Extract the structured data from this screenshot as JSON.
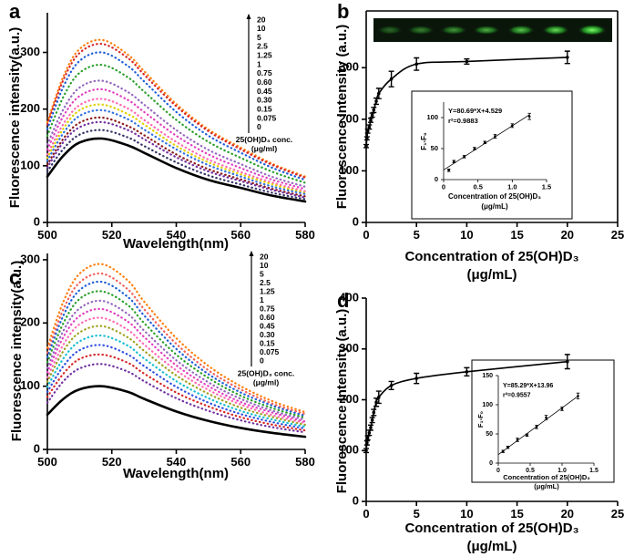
{
  "chart_data": [
    {
      "type": "line",
      "label": "a",
      "xlabel": "Wavelength(nm)",
      "ylabel": "Fluorescence intensity(a.u.)",
      "xlim": [
        500,
        580
      ],
      "ylim": [
        0,
        370
      ],
      "xticks": [
        500,
        520,
        540,
        560,
        580
      ],
      "yticks": [
        0,
        100,
        200,
        300
      ],
      "frame": "axes",
      "legend_title": [
        "25(OH)D₃ conc.",
        "(μg/ml)"
      ],
      "x": [
        500,
        505,
        510,
        517,
        525,
        530,
        540,
        550,
        560,
        570,
        580
      ],
      "series": [
        {
          "name": "20",
          "color": "#ff7f0e",
          "style": "dotted",
          "values": [
            177,
            258,
            306,
            322,
            296,
            267,
            209,
            164,
            132,
            103,
            81
          ]
        },
        {
          "name": "10",
          "color": "#d62728",
          "style": "dotted",
          "values": [
            173,
            252,
            299,
            315,
            290,
            261,
            205,
            161,
            129,
            101,
            79
          ]
        },
        {
          "name": "5",
          "color": "#1f5fd6",
          "style": "dotted",
          "values": [
            165,
            240,
            285,
            300,
            276,
            249,
            195,
            153,
            123,
            96,
            75
          ]
        },
        {
          "name": "2.5",
          "color": "#2ca02c",
          "style": "dotted",
          "values": [
            153,
            222,
            264,
            278,
            256,
            231,
            181,
            142,
            114,
            89,
            70
          ]
        },
        {
          "name": "1.25",
          "color": "#9467bd",
          "style": "dotted",
          "values": [
            138,
            200,
            238,
            250,
            230,
            208,
            163,
            128,
            103,
            80,
            63
          ]
        },
        {
          "name": "1",
          "color": "#e040c0",
          "style": "dotted",
          "values": [
            129,
            188,
            223,
            235,
            216,
            195,
            153,
            120,
            96,
            75,
            59
          ]
        },
        {
          "name": "0.75",
          "color": "#ff69b4",
          "style": "dotted",
          "values": [
            120,
            174,
            207,
            218,
            201,
            181,
            142,
            111,
            89,
            70,
            55
          ]
        },
        {
          "name": "0.60",
          "color": "#e0d000",
          "style": "dotted",
          "values": [
            114,
            166,
            198,
            208,
            191,
            173,
            135,
            106,
            85,
            67,
            52
          ]
        },
        {
          "name": "0.45",
          "color": "#3070e0",
          "style": "dotted",
          "values": [
            109,
            158,
            188,
            198,
            182,
            164,
            129,
            101,
            81,
            63,
            50
          ]
        },
        {
          "name": "0.30",
          "color": "#8b1a1a",
          "style": "dotted",
          "values": [
            102,
            148,
            176,
            185,
            170,
            154,
            120,
            94,
            76,
            59,
            46
          ]
        },
        {
          "name": "0.15",
          "color": "#7030a0",
          "style": "dotted",
          "values": [
            97,
            142,
            168,
            177,
            163,
            147,
            115,
            90,
            73,
            57,
            44
          ]
        },
        {
          "name": "0.075",
          "color": "#333366",
          "style": "dotted",
          "values": [
            90,
            130,
            155,
            163,
            150,
            135,
            106,
            83,
            67,
            52,
            41
          ]
        },
        {
          "name": "0",
          "color": "#000000",
          "style": "solid",
          "values": [
            81,
            118,
            141,
            148,
            136,
            123,
            96,
            75,
            61,
            47,
            37
          ]
        }
      ]
    },
    {
      "type": "scatter",
      "label": "b",
      "xlabel": [
        "Concentration of 25(OH)D₃",
        "(μg/mL)"
      ],
      "ylabel": "Fluorescence Intensity (a.u.)",
      "xlim": [
        0,
        25
      ],
      "ylim": [
        0,
        410
      ],
      "xticks": [
        0,
        5,
        10,
        15,
        20,
        25
      ],
      "yticks": [
        0,
        100,
        200,
        300
      ],
      "frame": "box",
      "curve": "smooth",
      "color": "#000000",
      "x": [
        0,
        0.075,
        0.15,
        0.3,
        0.45,
        0.6,
        0.75,
        1,
        1.25,
        2.5,
        5,
        10,
        20
      ],
      "values": [
        148,
        163,
        177,
        185,
        198,
        208,
        218,
        235,
        250,
        278,
        307,
        312,
        320
      ],
      "errors": [
        3,
        3,
        4,
        4,
        4,
        4,
        5,
        6,
        10,
        15,
        12,
        5,
        12
      ]
    },
    {
      "type": "scatter",
      "xlabel": [
        "Concentration of 25(OH)D₃",
        "(μg/mL)"
      ],
      "ylabel": "F₁-F₀",
      "xlim": [
        0,
        1.5
      ],
      "ylim": [
        0,
        125
      ],
      "xticks": [
        0,
        0.5,
        {
          "value": 1,
          "label": "1.0"
        },
        1.5
      ],
      "yticks": [
        0,
        50,
        100
      ],
      "frame": "axes",
      "curve": "linear-fit",
      "color": "#000000",
      "annotations": [
        "Y=80.69*X+4.529",
        "r²=0.9883"
      ],
      "x": [
        0.075,
        0.15,
        0.3,
        0.45,
        0.6,
        0.75,
        1,
        1.25
      ],
      "values": [
        15,
        29,
        37,
        50,
        60,
        70,
        87,
        102
      ],
      "errors": [
        2,
        2,
        2,
        2,
        2,
        3,
        3,
        5
      ]
    },
    {
      "type": "line",
      "label": "c",
      "xlabel": "Wavelength(nm)",
      "ylabel": "Fluorescence intensity(a.u.)",
      "xlim": [
        500,
        580
      ],
      "ylim": [
        0,
        310
      ],
      "xticks": [
        500,
        520,
        540,
        560,
        580
      ],
      "yticks": [
        0,
        100,
        200,
        300
      ],
      "frame": "axes",
      "legend_title": [
        "25(OH)D₃ conc.",
        "(μg/ml)"
      ],
      "x": [
        500,
        505,
        510,
        517,
        525,
        530,
        540,
        550,
        560,
        570,
        580
      ],
      "series": [
        {
          "name": "20",
          "color": "#ff7f0e",
          "style": "dotted",
          "values": [
            161,
            234,
            278,
            293,
            267,
            234,
            176,
            132,
            100,
            76,
            59
          ]
        },
        {
          "name": "10",
          "color": "#f0605a",
          "style": "dotted",
          "values": [
            153,
            222,
            264,
            278,
            253,
            222,
            167,
            125,
            95,
            72,
            56
          ]
        },
        {
          "name": "5",
          "color": "#1f5fd6",
          "style": "dotted",
          "values": [
            146,
            212,
            252,
            265,
            241,
            212,
            159,
            119,
            90,
            69,
            53
          ]
        },
        {
          "name": "2.5",
          "color": "#2ca02c",
          "style": "dotted",
          "values": [
            138,
            200,
            238,
            250,
            228,
            200,
            150,
            113,
            85,
            65,
            50
          ]
        },
        {
          "name": "1.25",
          "color": "#9467bd",
          "style": "dotted",
          "values": [
            129,
            188,
            223,
            235,
            214,
            188,
            141,
            106,
            80,
            61,
            47
          ]
        },
        {
          "name": "1",
          "color": "#e040c0",
          "style": "dotted",
          "values": [
            122,
            178,
            211,
            222,
            202,
            178,
            133,
            100,
            75,
            58,
            44
          ]
        },
        {
          "name": "0.75",
          "color": "#ff69b4",
          "style": "dotted",
          "values": [
            114,
            166,
            198,
            208,
            189,
            166,
            125,
            94,
            71,
            54,
            42
          ]
        },
        {
          "name": "0.60",
          "color": "#a0a020",
          "style": "dotted",
          "values": [
            107,
            156,
            185,
            195,
            177,
            156,
            117,
            88,
            66,
            51,
            39
          ]
        },
        {
          "name": "0.45",
          "color": "#17becf",
          "style": "dotted",
          "values": [
            99,
            144,
            171,
            180,
            164,
            144,
            108,
            81,
            61,
            47,
            36
          ]
        },
        {
          "name": "0.30",
          "color": "#3050e0",
          "style": "dotted",
          "values": [
            91,
            132,
            157,
            165,
            150,
            132,
            99,
            74,
            56,
            43,
            33
          ]
        },
        {
          "name": "0.15",
          "color": "#d62728",
          "style": "dotted",
          "values": [
            83,
            120,
            143,
            150,
            137,
            120,
            90,
            68,
            51,
            39,
            30
          ]
        },
        {
          "name": "0.075",
          "color": "#7030a0",
          "style": "dotted",
          "values": [
            74,
            108,
            128,
            135,
            123,
            108,
            81,
            61,
            46,
            35,
            27
          ]
        },
        {
          "name": "0",
          "color": "#000000",
          "style": "solid",
          "values": [
            55,
            80,
            95,
            100,
            91,
            80,
            60,
            45,
            34,
            26,
            20
          ]
        }
      ]
    },
    {
      "type": "scatter",
      "label": "d",
      "xlabel": [
        "Concentration of 25(OH)D₃",
        "(μg/mL)"
      ],
      "ylabel": "Fluorescence Intensity (a.u.)",
      "xlim": [
        0,
        25
      ],
      "ylim": [
        0,
        400
      ],
      "xticks": [
        0,
        5,
        10,
        15,
        20,
        25
      ],
      "yticks": [
        0,
        100,
        200,
        300,
        400
      ],
      "frame": "axes",
      "curve": "smooth",
      "color": "#000000",
      "x": [
        0,
        0.075,
        0.15,
        0.3,
        0.45,
        0.6,
        0.75,
        1,
        1.25,
        2.5,
        5,
        10,
        20
      ],
      "values": [
        100,
        115,
        125,
        135,
        145,
        160,
        175,
        195,
        205,
        228,
        242,
        255,
        275
      ],
      "errors": [
        4,
        4,
        4,
        5,
        5,
        5,
        6,
        8,
        12,
        8,
        10,
        8,
        14
      ]
    },
    {
      "type": "scatter",
      "xlabel": [
        "Concentration of 25(OH)D₃",
        "(μg/mL)"
      ],
      "ylabel": "F₁-F₀",
      "xlim": [
        0,
        1.5
      ],
      "ylim": [
        0,
        150
      ],
      "xticks": [
        0,
        0.5,
        {
          "value": 1,
          "label": "1.0"
        },
        1.5
      ],
      "yticks": [
        0,
        50,
        100,
        150
      ],
      "frame": "axes",
      "curve": "linear-fit",
      "color": "#000000",
      "annotations": [
        "Y=85.29*X+13.96",
        "r²=0.9557"
      ],
      "x": [
        0.075,
        0.15,
        0.3,
        0.45,
        0.6,
        0.75,
        1,
        1.25
      ],
      "values": [
        20,
        27,
        40,
        48,
        62,
        78,
        93,
        115
      ],
      "errors": [
        2,
        2,
        3,
        2,
        3,
        4,
        3,
        5
      ]
    }
  ]
}
